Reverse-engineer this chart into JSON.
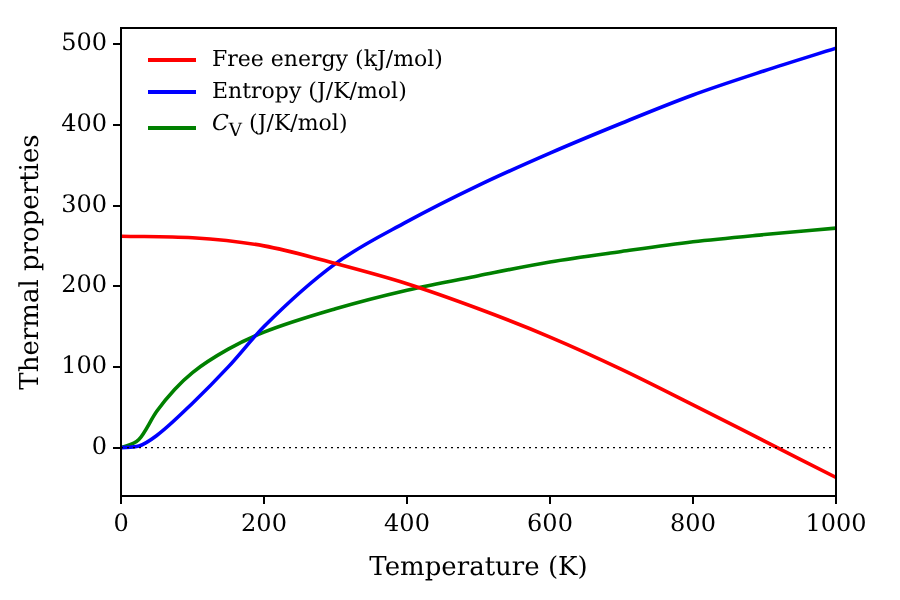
{
  "chart_data": {
    "type": "line",
    "xlabel": "Temperature (K)",
    "ylabel": "Thermal properties",
    "xlim": [
      0,
      1000
    ],
    "xticks": [
      0,
      200,
      400,
      600,
      800,
      1000
    ],
    "ylim": [
      -60,
      520
    ],
    "yticks": [
      0,
      100,
      200,
      300,
      400,
      500
    ],
    "grid": false,
    "legend": "top left",
    "ref_lines": [
      {
        "axis": "y",
        "value": 0,
        "color": "#000000",
        "line_style": "dotted"
      }
    ],
    "series": [
      {
        "name": "Free energy (kJ/mol)",
        "color": "#ff0000",
        "x": [
          0,
          100,
          200,
          300,
          400,
          500,
          600,
          700,
          800,
          900,
          1000
        ],
        "values": [
          262,
          260,
          250,
          228,
          203,
          172,
          137,
          97,
          53,
          8,
          -37
        ]
      },
      {
        "name": "Entropy (J/K/mol)",
        "color": "#0000ff",
        "x": [
          0,
          25,
          50,
          100,
          150,
          200,
          300,
          400,
          500,
          600,
          700,
          800,
          900,
          1000
        ],
        "values": [
          0,
          2,
          15,
          55,
          100,
          150,
          228,
          280,
          325,
          365,
          402,
          437,
          467,
          495
        ]
      },
      {
        "name": "C$_{V}$ (J/K/mol)",
        "color": "#008000",
        "x": [
          0,
          25,
          50,
          75,
          100,
          150,
          200,
          300,
          400,
          500,
          600,
          700,
          800,
          900,
          1000
        ],
        "values": [
          0,
          10,
          45,
          72,
          93,
          122,
          143,
          172,
          195,
          213,
          230,
          243,
          255,
          264,
          272
        ]
      }
    ]
  }
}
